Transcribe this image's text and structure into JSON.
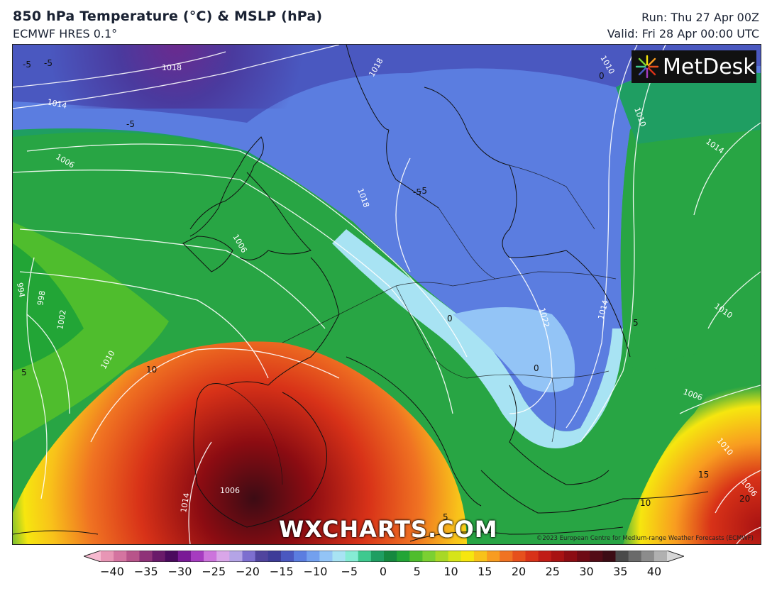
{
  "header": {
    "title": "850 hPa Temperature (°C) & MSLP (hPa)",
    "model": "ECMWF HRES 0.1°",
    "run": "Run: Thu 27 Apr 00Z",
    "valid": "Valid: Fri 28 Apr 00:00 UTC"
  },
  "branding": {
    "logo_text": "MetDesk",
    "watermark": "WXCHARTS.COM",
    "copyright": "©2023 European Centre for Medium-range Weather Forecasts (ECMWF)"
  },
  "map": {
    "isobar_labels": [
      "1018",
      "1018",
      "1014",
      "1006",
      "1018",
      "1010",
      "1010",
      "1014",
      "1006",
      "998",
      "1002",
      "1010",
      "1006",
      "1022",
      "1014",
      "1010",
      "1006",
      "1010",
      "1014",
      "994",
      "1006"
    ],
    "temperature_labels": [
      "-5",
      "-5",
      "-5",
      "-5",
      "0",
      "0",
      "5",
      "10",
      "15",
      "20",
      "5",
      "10",
      "5",
      "-5",
      "0"
    ]
  },
  "colorbar": {
    "ticks": [
      "−40",
      "−35",
      "−30",
      "−25",
      "−20",
      "−15",
      "−10",
      "−5",
      "0",
      "5",
      "10",
      "15",
      "20",
      "25",
      "30",
      "35",
      "40"
    ],
    "colors": [
      "#f6b9cf",
      "#e896b5",
      "#d474a0",
      "#b8548a",
      "#8f3278",
      "#6a1a6a",
      "#4b0a5e",
      "#7a1a96",
      "#a63cc0",
      "#cc74dc",
      "#d9a6e8",
      "#b4a4e6",
      "#7d6fcf",
      "#50449e",
      "#3d3c98",
      "#4a58c0",
      "#5b7de0",
      "#73a0ee",
      "#93c4f6",
      "#a8e3f3",
      "#86ecd4",
      "#3fc98f",
      "#1f9e62",
      "#15883f",
      "#22a536",
      "#4fbd2d",
      "#7bd032",
      "#a8d826",
      "#d6e41a",
      "#f6e60f",
      "#f8c21a",
      "#f89c20",
      "#f07322",
      "#e6501c",
      "#d83218",
      "#c01c16",
      "#a81212",
      "#8c0c12",
      "#6e0a14",
      "#530c16",
      "#3c0c14",
      "#4a4a4a",
      "#6a6a6a",
      "#8c8c8c",
      "#b0b0b0",
      "#d6d6d6"
    ]
  }
}
